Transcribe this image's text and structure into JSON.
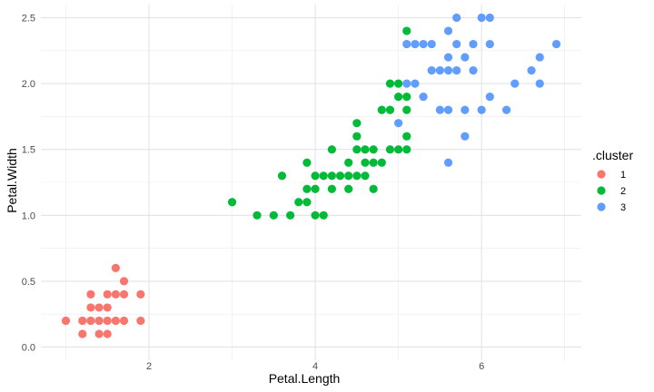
{
  "chart_data": {
    "type": "scatter",
    "xlabel": "Petal.Length",
    "ylabel": "Petal.Width",
    "xlim": [
      0.7,
      7.2
    ],
    "ylim": [
      -0.1,
      2.6
    ],
    "x_ticks": [
      2,
      4,
      6
    ],
    "x_tick_labels": [
      "2",
      "4",
      "6"
    ],
    "y_ticks": [
      0.0,
      0.5,
      1.0,
      1.5,
      2.0,
      2.5
    ],
    "y_tick_labels": [
      "0.0",
      "0.5",
      "1.0",
      "1.5",
      "2.0",
      "2.5"
    ],
    "grid": true,
    "legend_position": "right",
    "legend_title": ".cluster",
    "series": [
      {
        "name": "1",
        "color": "#F8766D",
        "points": [
          [
            1.0,
            0.2
          ],
          [
            1.2,
            0.1
          ],
          [
            1.2,
            0.2
          ],
          [
            1.3,
            0.2
          ],
          [
            1.3,
            0.3
          ],
          [
            1.3,
            0.4
          ],
          [
            1.4,
            0.1
          ],
          [
            1.4,
            0.2
          ],
          [
            1.4,
            0.3
          ],
          [
            1.5,
            0.1
          ],
          [
            1.5,
            0.2
          ],
          [
            1.5,
            0.3
          ],
          [
            1.5,
            0.4
          ],
          [
            1.6,
            0.2
          ],
          [
            1.6,
            0.4
          ],
          [
            1.6,
            0.6
          ],
          [
            1.7,
            0.2
          ],
          [
            1.7,
            0.4
          ],
          [
            1.7,
            0.5
          ],
          [
            1.9,
            0.2
          ],
          [
            1.9,
            0.4
          ]
        ]
      },
      {
        "name": "2",
        "color": "#00BA38",
        "points": [
          [
            3.0,
            1.1
          ],
          [
            3.3,
            1.0
          ],
          [
            3.5,
            1.0
          ],
          [
            3.6,
            1.3
          ],
          [
            3.7,
            1.0
          ],
          [
            3.8,
            1.1
          ],
          [
            3.9,
            1.1
          ],
          [
            3.9,
            1.2
          ],
          [
            3.9,
            1.4
          ],
          [
            4.0,
            1.0
          ],
          [
            4.0,
            1.2
          ],
          [
            4.0,
            1.3
          ],
          [
            4.1,
            1.0
          ],
          [
            4.1,
            1.3
          ],
          [
            4.2,
            1.2
          ],
          [
            4.2,
            1.3
          ],
          [
            4.2,
            1.5
          ],
          [
            4.3,
            1.3
          ],
          [
            4.4,
            1.2
          ],
          [
            4.4,
            1.3
          ],
          [
            4.4,
            1.4
          ],
          [
            4.5,
            1.3
          ],
          [
            4.5,
            1.5
          ],
          [
            4.5,
            1.6
          ],
          [
            4.5,
            1.7
          ],
          [
            4.6,
            1.3
          ],
          [
            4.6,
            1.4
          ],
          [
            4.6,
            1.5
          ],
          [
            4.7,
            1.2
          ],
          [
            4.7,
            1.4
          ],
          [
            4.7,
            1.5
          ],
          [
            4.8,
            1.4
          ],
          [
            4.8,
            1.8
          ],
          [
            4.9,
            1.5
          ],
          [
            4.9,
            1.8
          ],
          [
            4.9,
            2.0
          ],
          [
            5.0,
            1.5
          ],
          [
            5.0,
            1.9
          ],
          [
            5.0,
            2.0
          ],
          [
            5.1,
            1.5
          ],
          [
            5.1,
            1.6
          ],
          [
            5.1,
            1.8
          ],
          [
            5.1,
            1.9
          ],
          [
            5.1,
            2.4
          ]
        ]
      },
      {
        "name": "3",
        "color": "#619CFF",
        "points": [
          [
            5.0,
            1.7
          ],
          [
            5.1,
            2.0
          ],
          [
            5.1,
            2.3
          ],
          [
            5.2,
            2.0
          ],
          [
            5.2,
            2.3
          ],
          [
            5.3,
            1.9
          ],
          [
            5.3,
            2.3
          ],
          [
            5.4,
            2.1
          ],
          [
            5.4,
            2.3
          ],
          [
            5.5,
            1.8
          ],
          [
            5.5,
            2.1
          ],
          [
            5.6,
            1.4
          ],
          [
            5.6,
            1.8
          ],
          [
            5.6,
            2.1
          ],
          [
            5.6,
            2.2
          ],
          [
            5.6,
            2.4
          ],
          [
            5.7,
            2.1
          ],
          [
            5.7,
            2.3
          ],
          [
            5.7,
            2.5
          ],
          [
            5.8,
            1.6
          ],
          [
            5.8,
            1.8
          ],
          [
            5.8,
            2.2
          ],
          [
            5.9,
            2.1
          ],
          [
            5.9,
            2.3
          ],
          [
            6.0,
            1.8
          ],
          [
            6.0,
            2.5
          ],
          [
            6.1,
            1.9
          ],
          [
            6.1,
            2.3
          ],
          [
            6.1,
            2.5
          ],
          [
            6.3,
            1.8
          ],
          [
            6.4,
            2.0
          ],
          [
            6.6,
            2.1
          ],
          [
            6.7,
            2.0
          ],
          [
            6.7,
            2.2
          ],
          [
            6.9,
            2.3
          ]
        ]
      }
    ]
  }
}
